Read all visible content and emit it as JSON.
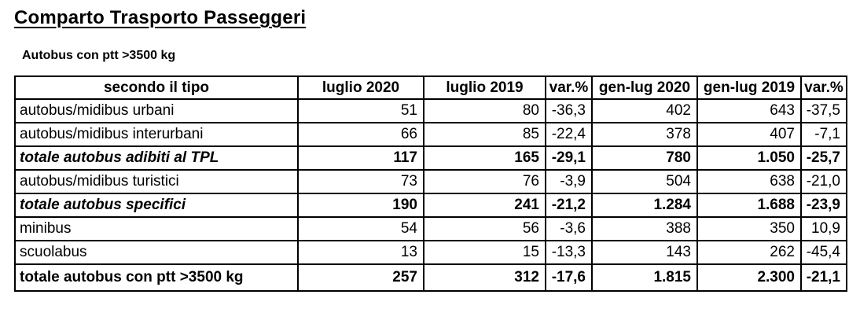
{
  "page": {
    "title": "Comparto Trasporto Passeggeri",
    "subtitle": "Autobus con ptt >3500 kg"
  },
  "colors": {
    "text": "#000000",
    "border": "#000000",
    "background": "#ffffff"
  },
  "table": {
    "headers": [
      "secondo il tipo",
      "luglio 2020",
      "luglio 2019",
      "var.%",
      "gen-lug 2020",
      "gen-lug 2019",
      "var.%"
    ],
    "rows": [
      {
        "label": "autobus/midibus urbani",
        "style": "normal",
        "values": [
          "51",
          "80",
          "-36,3",
          "402",
          "643",
          "-37,5"
        ]
      },
      {
        "label": "autobus/midibus interurbani",
        "style": "normal",
        "values": [
          "66",
          "85",
          "-22,4",
          "378",
          "407",
          "-7,1"
        ]
      },
      {
        "label": "totale autobus adibiti al TPL",
        "style": "total",
        "values": [
          "117",
          "165",
          "-29,1",
          "780",
          "1.050",
          "-25,7"
        ]
      },
      {
        "label": "autobus/midibus turistici",
        "style": "normal",
        "values": [
          "73",
          "76",
          "-3,9",
          "504",
          "638",
          "-21,0"
        ]
      },
      {
        "label": "totale autobus specifici",
        "style": "total",
        "values": [
          "190",
          "241",
          "-21,2",
          "1.284",
          "1.688",
          "-23,9"
        ]
      },
      {
        "label": "minibus",
        "style": "normal",
        "values": [
          "54",
          "56",
          "-3,6",
          "388",
          "350",
          "10,9"
        ]
      },
      {
        "label": "scuolabus",
        "style": "normal",
        "values": [
          "13",
          "15",
          "-13,3",
          "143",
          "262",
          "-45,4"
        ]
      },
      {
        "label": "totale autobus con ptt >3500 kg",
        "style": "grand",
        "values": [
          "257",
          "312",
          "-17,6",
          "1.815",
          "2.300",
          "-21,1"
        ]
      }
    ]
  }
}
